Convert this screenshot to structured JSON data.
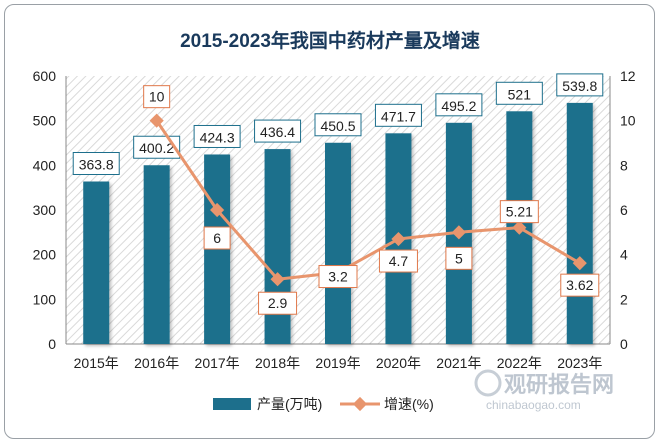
{
  "chart_data": {
    "type": "bar",
    "title": "2015-2023年我国中药材产量及增速",
    "categories": [
      "2015年",
      "2016年",
      "2017年",
      "2018年",
      "2019年",
      "2020年",
      "2021年",
      "2022年",
      "2023年"
    ],
    "series": [
      {
        "name": "产量(万吨)",
        "type": "bar",
        "axis": "left",
        "values": [
          363.8,
          400.2,
          424.3,
          436.4,
          450.5,
          471.7,
          495.2,
          521,
          539.8
        ],
        "labels": [
          "363.8",
          "400.2",
          "424.3",
          "436.4",
          "450.5",
          "471.7",
          "495.2",
          "521",
          "539.8"
        ],
        "color": "#1d6f8c"
      },
      {
        "name": "增速(%)",
        "type": "line",
        "axis": "right",
        "values": [
          null,
          10,
          6,
          2.9,
          3.2,
          4.7,
          5,
          5.21,
          3.62
        ],
        "labels": [
          "",
          "10",
          "6",
          "2.9",
          "3.2",
          "4.7",
          "5",
          "5.21",
          "3.62"
        ],
        "color": "#e8956d"
      }
    ],
    "ylim_left": [
      0,
      600
    ],
    "yticks_left": [
      "0",
      "100",
      "200",
      "300",
      "400",
      "500",
      "600"
    ],
    "ylim_right": [
      0,
      12
    ],
    "yticks_right": [
      "0",
      "2",
      "4",
      "6",
      "8",
      "10",
      "12"
    ],
    "legend_position": "bottom"
  },
  "watermark": {
    "brand": "观研报告网",
    "url": "chinabaogao.com"
  }
}
